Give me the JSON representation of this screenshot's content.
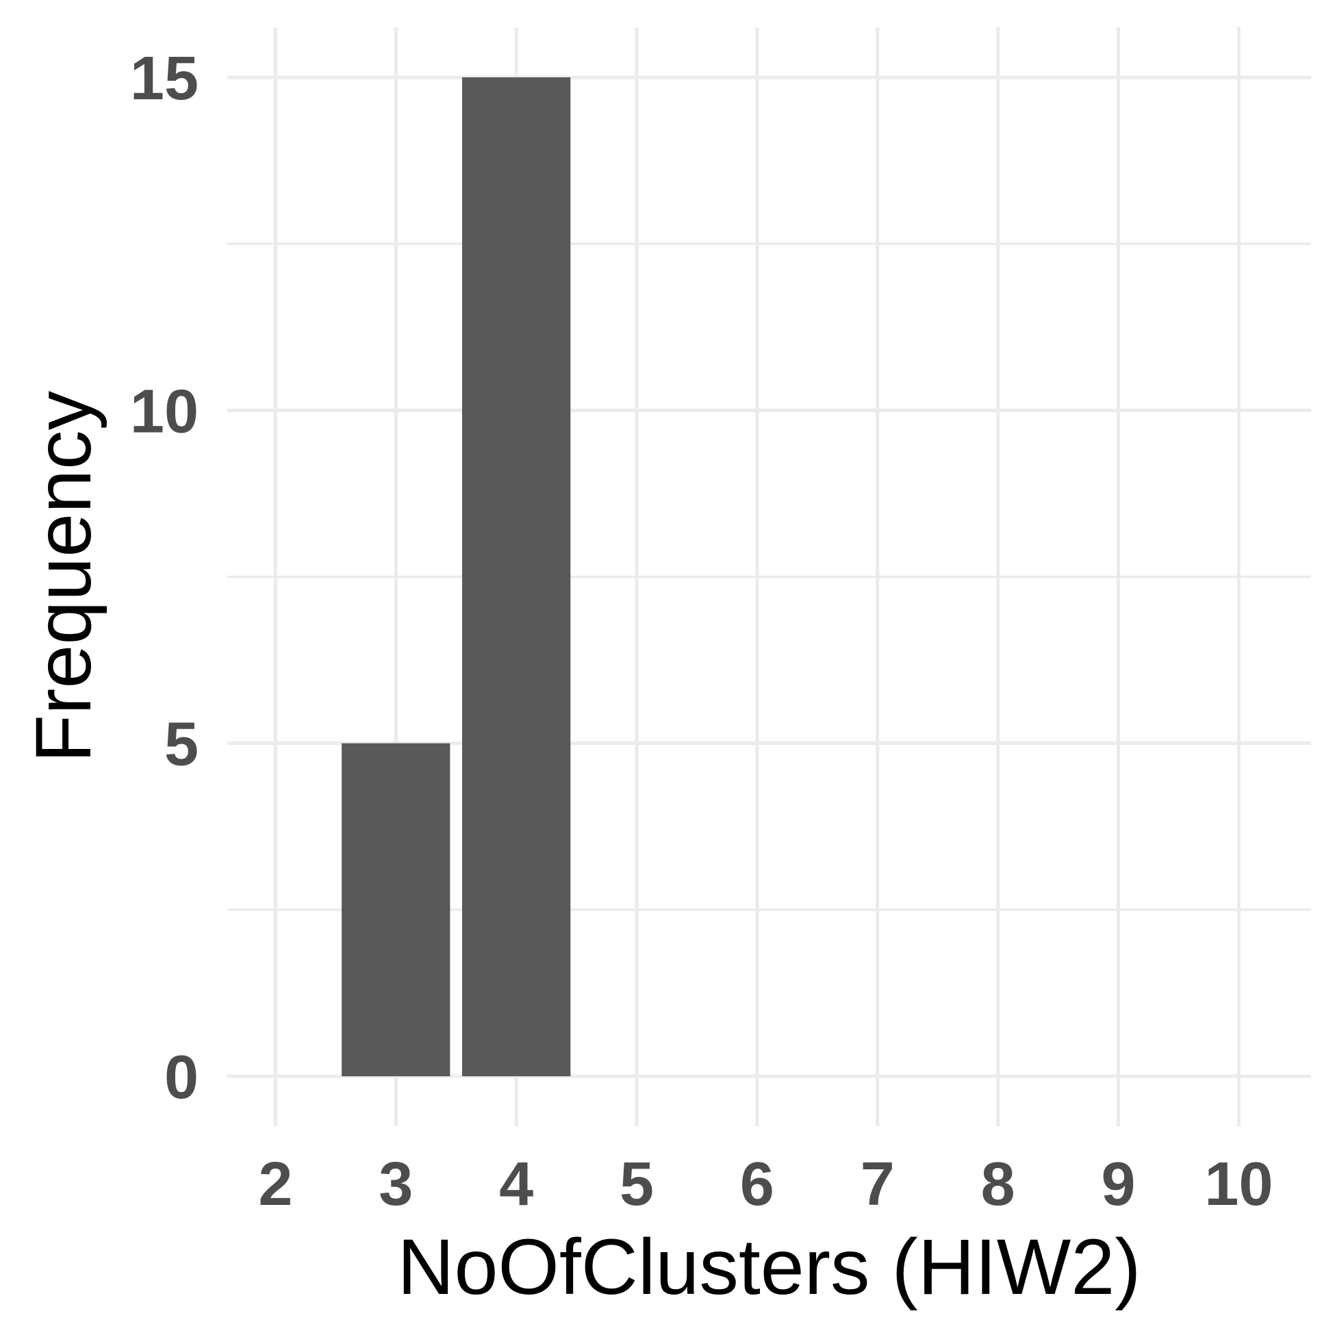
{
  "chart_data": {
    "type": "bar",
    "x": [
      3,
      4
    ],
    "values": [
      5,
      15
    ],
    "xlabel": "NoOfClusters (HIW2)",
    "ylabel": "Frequency",
    "xlim": [
      1.6,
      10.6
    ],
    "ylim": [
      -0.75,
      15.75
    ],
    "xticks": [
      2,
      3,
      4,
      5,
      6,
      7,
      8,
      9,
      10
    ],
    "xtick_labels": [
      "2",
      "3",
      "4",
      "5",
      "6",
      "7",
      "8",
      "9",
      "10"
    ],
    "yticks": [
      0,
      5,
      10,
      15
    ],
    "ytick_labels": [
      "0",
      "5",
      "10",
      "15"
    ],
    "y_minor_ticks": [
      2.5,
      7.5,
      12.5
    ],
    "grid": true,
    "bar_color": "#595959",
    "grid_color": "#ebebeb"
  }
}
